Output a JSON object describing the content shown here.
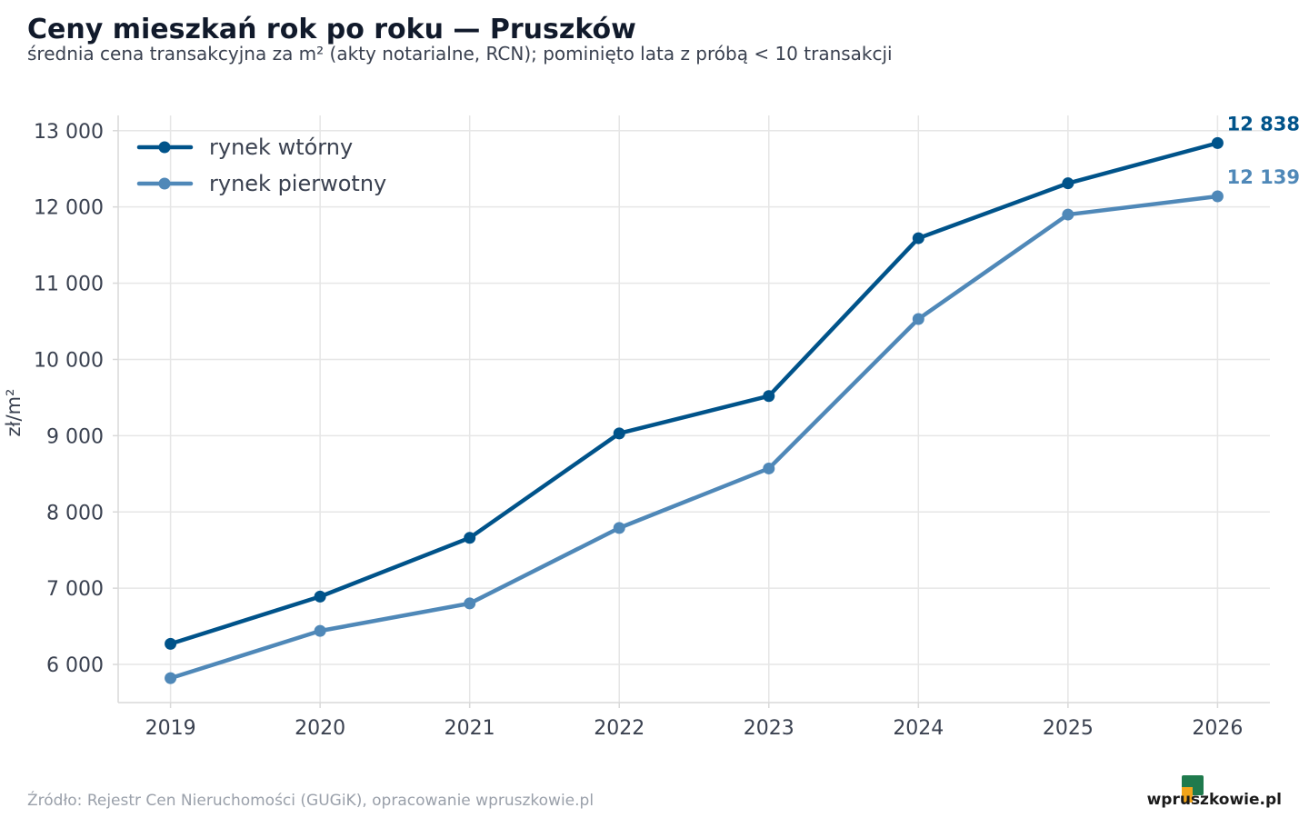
{
  "chart_data": {
    "type": "line",
    "title": "Ceny mieszkań rok po roku — Pruszków",
    "subtitle": "średnia cena transakcyjna za m² (akty notarialne, RCN); pominięto lata z próbą < 10 transakcji",
    "xlabel": "",
    "ylabel": "zł/m²",
    "x": [
      2019,
      2020,
      2021,
      2022,
      2023,
      2024,
      2025,
      2026
    ],
    "xlim": [
      2018.65,
      2026.35
    ],
    "ylim": [
      5500,
      13200
    ],
    "yticks": [
      6000,
      7000,
      8000,
      9000,
      10000,
      11000,
      12000,
      13000
    ],
    "ytick_labels": [
      "6 000",
      "7 000",
      "8 000",
      "9 000",
      "10 000",
      "11 000",
      "12 000",
      "13 000"
    ],
    "grid": true,
    "legend_position": "top-left",
    "series": [
      {
        "name": "rynek wtórny",
        "color": "#00538a",
        "values": [
          6270,
          6890,
          7660,
          9030,
          9520,
          11590,
          12310,
          12838
        ],
        "end_label": "12 838"
      },
      {
        "name": "rynek pierwotny",
        "color": "#4f88b8",
        "values": [
          5820,
          6440,
          6800,
          7790,
          8570,
          10530,
          11900,
          12139
        ],
        "end_label": "12 139"
      }
    ]
  },
  "footer": {
    "source": "Źródło: Rejestr Cen Nieruchomości (GUGiK), opracowanie wpruszkowie.pl",
    "logo_text": "wpruszkowie.pl"
  }
}
